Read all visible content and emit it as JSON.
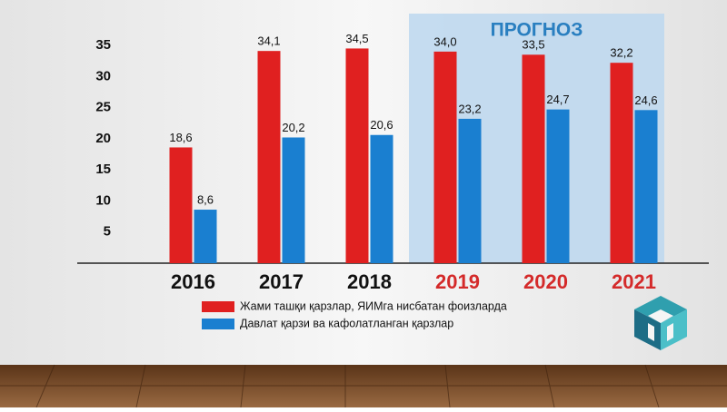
{
  "chart_data": {
    "type": "bar",
    "annotation": "ПРОГНОЗ",
    "forecast_from": "2019",
    "categories": [
      "2016",
      "2017",
      "2018",
      "2019",
      "2020",
      "2021"
    ],
    "category_colors": [
      "#111111",
      "#111111",
      "#111111",
      "#d42a2a",
      "#d42a2a",
      "#d42a2a"
    ],
    "series": [
      {
        "name": "Жами ташқи қарзлар, ЯИМга нисбатан фоизларда",
        "color": "#e02020",
        "values": [
          18.6,
          34.1,
          34.5,
          34.0,
          33.5,
          32.2
        ],
        "value_labels": [
          "18,6",
          "34,1",
          "34,5",
          "34,0",
          "33,5",
          "32,2"
        ]
      },
      {
        "name": "Давлат қарзи ва кафолатланган қарзлар",
        "color": "#1a7fd0",
        "values": [
          8.6,
          20.2,
          20.6,
          23.2,
          24.7,
          24.6
        ],
        "value_labels": [
          "8,6",
          "20,2",
          "20,6",
          "23,2",
          "24,7",
          "24,6"
        ]
      }
    ],
    "ylim": [
      0,
      35
    ],
    "yticks": [
      5,
      10,
      15,
      20,
      25,
      30,
      35
    ]
  }
}
